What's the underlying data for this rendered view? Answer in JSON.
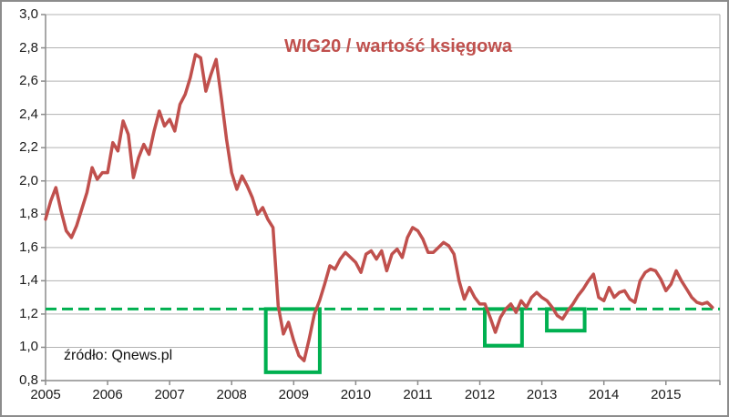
{
  "source_label": "źródło: Qnews.pl",
  "chart_data": {
    "type": "line",
    "title": "WIG20 / wartość księgowa",
    "xlabel": "",
    "ylabel": "",
    "grid": "horizontal",
    "legend": "none",
    "ylim": [
      0.8,
      3.0
    ],
    "xlim": [
      2005,
      2015.87
    ],
    "x_ticks": [
      2005,
      2006,
      2007,
      2008,
      2009,
      2010,
      2011,
      2012,
      2013,
      2014,
      2015
    ],
    "y_tick_labels": [
      "0,8",
      "1,0",
      "1,2",
      "1,4",
      "1,6",
      "1,8",
      "2,0",
      "2,2",
      "2,4",
      "2,6",
      "2,8",
      "3,0"
    ],
    "y_tick_values": [
      0.8,
      1.0,
      1.2,
      1.4,
      1.6,
      1.8,
      2.0,
      2.2,
      2.4,
      2.6,
      2.8,
      3.0
    ],
    "decimal_separator": ",",
    "line_color": "#C0504D",
    "accent_green": "#00B050",
    "series": [
      {
        "name": "WIG20 / wartość księgowa",
        "frequency": "monthly",
        "start_year": 2005,
        "start_month": 1,
        "values": [
          1.77,
          1.88,
          1.96,
          1.82,
          1.7,
          1.66,
          1.73,
          1.83,
          1.93,
          2.08,
          2.01,
          2.05,
          2.05,
          2.23,
          2.18,
          2.36,
          2.28,
          2.02,
          2.14,
          2.22,
          2.16,
          2.3,
          2.42,
          2.33,
          2.37,
          2.3,
          2.46,
          2.52,
          2.62,
          2.76,
          2.74,
          2.54,
          2.64,
          2.73,
          2.5,
          2.25,
          2.05,
          1.95,
          2.03,
          1.97,
          1.9,
          1.8,
          1.84,
          1.77,
          1.72,
          1.25,
          1.08,
          1.15,
          1.04,
          0.95,
          0.92,
          1.05,
          1.2,
          1.28,
          1.38,
          1.49,
          1.47,
          1.53,
          1.57,
          1.54,
          1.51,
          1.45,
          1.56,
          1.58,
          1.53,
          1.58,
          1.46,
          1.56,
          1.59,
          1.54,
          1.66,
          1.72,
          1.7,
          1.65,
          1.57,
          1.57,
          1.6,
          1.63,
          1.61,
          1.56,
          1.4,
          1.29,
          1.36,
          1.3,
          1.26,
          1.26,
          1.18,
          1.09,
          1.18,
          1.23,
          1.26,
          1.21,
          1.28,
          1.24,
          1.3,
          1.33,
          1.3,
          1.28,
          1.24,
          1.19,
          1.17,
          1.22,
          1.26,
          1.31,
          1.35,
          1.4,
          1.44,
          1.3,
          1.28,
          1.36,
          1.3,
          1.33,
          1.34,
          1.29,
          1.27,
          1.4,
          1.45,
          1.47,
          1.46,
          1.41,
          1.34,
          1.38,
          1.46,
          1.4,
          1.35,
          1.3,
          1.27,
          1.26,
          1.27,
          1.24
        ]
      }
    ],
    "reference_line": {
      "value": 1.23,
      "style": "dashed",
      "color": "#00B050"
    },
    "highlight_boxes": [
      {
        "x_from": 2008.55,
        "x_to": 2009.42,
        "y_from": 0.85,
        "y_to": 1.23
      },
      {
        "x_from": 2012.08,
        "x_to": 2012.68,
        "y_from": 1.01,
        "y_to": 1.23
      },
      {
        "x_from": 2013.08,
        "x_to": 2013.69,
        "y_from": 1.1,
        "y_to": 1.23
      }
    ]
  }
}
